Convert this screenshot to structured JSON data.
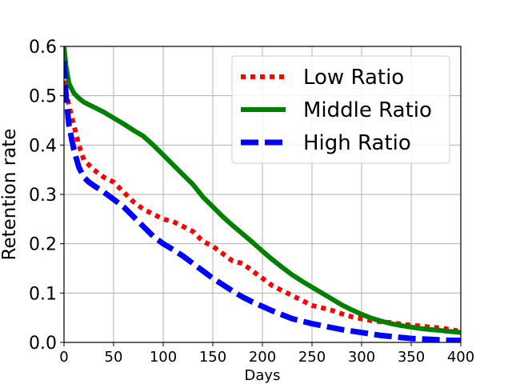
{
  "chart_data": {
    "type": "line",
    "title": "",
    "xlabel": "Days",
    "ylabel": "Retention rate",
    "xlim": [
      0,
      400
    ],
    "ylim": [
      0.0,
      0.6
    ],
    "xticks": [
      0,
      50,
      100,
      150,
      200,
      250,
      300,
      350,
      400
    ],
    "yticks": [
      0.0,
      0.1,
      0.2,
      0.3,
      0.4,
      0.5,
      0.6
    ],
    "xtick_labels": [
      "0",
      "50",
      "100",
      "150",
      "200",
      "250",
      "300",
      "350",
      "400"
    ],
    "ytick_labels": [
      "0.0",
      "0.1",
      "0.2",
      "0.3",
      "0.4",
      "0.5",
      "0.6"
    ],
    "grid": true,
    "legend_position": "top-right",
    "series": [
      {
        "name": "Low Ratio",
        "color": "#ff0000",
        "style": "dotted",
        "x": [
          0,
          2,
          5,
          10,
          15,
          20,
          25,
          30,
          40,
          50,
          60,
          70,
          80,
          90,
          100,
          110,
          120,
          130,
          140,
          150,
          160,
          170,
          180,
          190,
          200,
          210,
          220,
          230,
          240,
          250,
          260,
          270,
          280,
          290,
          300,
          310,
          320,
          330,
          340,
          350,
          360,
          370,
          380,
          390,
          400
        ],
        "y": [
          0.55,
          0.51,
          0.48,
          0.44,
          0.4,
          0.37,
          0.36,
          0.35,
          0.335,
          0.325,
          0.305,
          0.285,
          0.27,
          0.26,
          0.25,
          0.245,
          0.235,
          0.225,
          0.205,
          0.195,
          0.18,
          0.165,
          0.16,
          0.145,
          0.13,
          0.115,
          0.105,
          0.095,
          0.085,
          0.075,
          0.07,
          0.065,
          0.058,
          0.052,
          0.048,
          0.044,
          0.042,
          0.04,
          0.037,
          0.035,
          0.033,
          0.031,
          0.029,
          0.026,
          0.022
        ]
      },
      {
        "name": "Middle Ratio",
        "color": "#008000",
        "style": "solid",
        "x": [
          0,
          2,
          5,
          10,
          15,
          20,
          25,
          30,
          40,
          50,
          60,
          70,
          80,
          90,
          100,
          110,
          120,
          130,
          140,
          150,
          160,
          170,
          180,
          190,
          200,
          210,
          220,
          230,
          240,
          250,
          260,
          270,
          280,
          290,
          300,
          310,
          320,
          330,
          340,
          350,
          360,
          370,
          380,
          390,
          400
        ],
        "y": [
          0.6,
          0.56,
          0.525,
          0.505,
          0.495,
          0.487,
          0.482,
          0.477,
          0.467,
          0.455,
          0.443,
          0.43,
          0.418,
          0.4,
          0.38,
          0.36,
          0.34,
          0.32,
          0.295,
          0.275,
          0.255,
          0.237,
          0.22,
          0.203,
          0.185,
          0.168,
          0.152,
          0.137,
          0.124,
          0.112,
          0.1,
          0.088,
          0.076,
          0.066,
          0.057,
          0.049,
          0.043,
          0.038,
          0.034,
          0.031,
          0.028,
          0.026,
          0.024,
          0.022,
          0.02
        ]
      },
      {
        "name": "High Ratio",
        "color": "#0000ff",
        "style": "dashed",
        "x": [
          0,
          2,
          5,
          10,
          15,
          20,
          25,
          30,
          40,
          50,
          60,
          70,
          80,
          90,
          100,
          110,
          120,
          130,
          140,
          150,
          160,
          170,
          180,
          190,
          200,
          210,
          220,
          230,
          240,
          250,
          260,
          270,
          280,
          290,
          300,
          310,
          320,
          330,
          340,
          350,
          360,
          370,
          380,
          390,
          400
        ],
        "y": [
          0.57,
          0.5,
          0.44,
          0.39,
          0.355,
          0.335,
          0.325,
          0.318,
          0.305,
          0.29,
          0.275,
          0.255,
          0.235,
          0.215,
          0.2,
          0.188,
          0.175,
          0.16,
          0.145,
          0.13,
          0.117,
          0.104,
          0.092,
          0.082,
          0.073,
          0.064,
          0.056,
          0.048,
          0.043,
          0.038,
          0.034,
          0.03,
          0.026,
          0.023,
          0.02,
          0.017,
          0.014,
          0.012,
          0.01,
          0.008,
          0.007,
          0.006,
          0.005,
          0.004,
          0.004
        ]
      }
    ]
  }
}
